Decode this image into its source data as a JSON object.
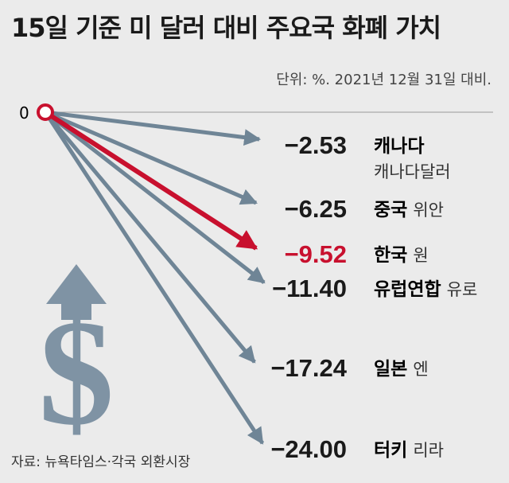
{
  "title": "15일 기준 미 달러 대비 주요국 화폐 가치",
  "unit": "단위: %. 2021년 12월 31일 대비.",
  "source": "자료: 뉴욕타임스·각국 외환시장",
  "colors": {
    "arrow": "#6f8596",
    "highlight": "#c8102e",
    "text": "#1a1a1a",
    "dollar": "#7f93a4"
  },
  "chart_data": {
    "type": "bar",
    "origin_label": "0",
    "categories": [
      "캐나다",
      "중국",
      "한국",
      "유럽연합",
      "일본",
      "터키"
    ],
    "series": [
      {
        "values": [
          -2.53,
          -6.25,
          -9.52,
          -11.4,
          -17.24,
          -24.0
        ],
        "labels": [
          "−2.53",
          "−6.25",
          "−9.52",
          "−11.40",
          "−17.24",
          "−24.00"
        ]
      }
    ],
    "currencies": [
      "캐나다달러",
      "위안",
      "원",
      "유로",
      "엔",
      "리라"
    ],
    "highlight": "한국"
  }
}
